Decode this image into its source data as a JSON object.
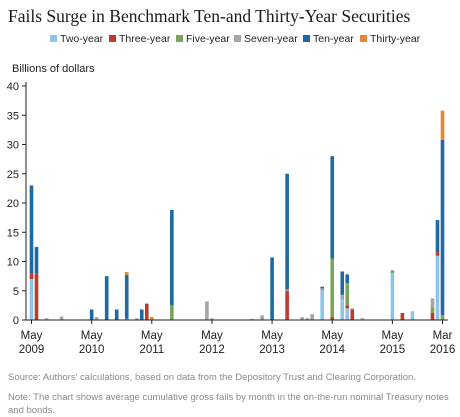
{
  "chart_data": {
    "type": "bar",
    "stacked": true,
    "title": "Fails Surge in Benchmark Ten-and Thirty-Year Securities",
    "ylabel": "Billions of dollars",
    "ylim": [
      0,
      40
    ],
    "yticks": [
      0,
      5,
      10,
      15,
      20,
      25,
      30,
      35,
      40
    ],
    "grid": false,
    "legend_position": "top",
    "xticks": [
      {
        "month": "May",
        "year": "2009"
      },
      {
        "month": "May",
        "year": "2010"
      },
      {
        "month": "May",
        "year": "2011"
      },
      {
        "month": "May",
        "year": "2012"
      },
      {
        "month": "May",
        "year": "2013"
      },
      {
        "month": "May",
        "year": "2014"
      },
      {
        "month": "May",
        "year": "2015"
      },
      {
        "month": "Mar",
        "year": "2016"
      }
    ],
    "categories": [
      "May 2009",
      "Jun 2009",
      "Jul 2009",
      "Aug 2009",
      "Sep 2009",
      "Oct 2009",
      "Nov 2009",
      "Dec 2009",
      "Jan 2010",
      "Feb 2010",
      "Mar 2010",
      "Apr 2010",
      "May 2010",
      "Jun 2010",
      "Jul 2010",
      "Aug 2010",
      "Sep 2010",
      "Oct 2010",
      "Nov 2010",
      "Dec 2010",
      "Jan 2011",
      "Feb 2011",
      "Mar 2011",
      "Apr 2011",
      "May 2011",
      "Jun 2011",
      "Jul 2011",
      "Aug 2011",
      "Sep 2011",
      "Oct 2011",
      "Nov 2011",
      "Dec 2011",
      "Jan 2012",
      "Feb 2012",
      "Mar 2012",
      "Apr 2012",
      "May 2012",
      "Jun 2012",
      "Jul 2012",
      "Aug 2012",
      "Sep 2012",
      "Oct 2012",
      "Nov 2012",
      "Dec 2012",
      "Jan 2013",
      "Feb 2013",
      "Mar 2013",
      "Apr 2013",
      "May 2013",
      "Jun 2013",
      "Jul 2013",
      "Aug 2013",
      "Sep 2013",
      "Oct 2013",
      "Nov 2013",
      "Dec 2013",
      "Jan 2014",
      "Feb 2014",
      "Mar 2014",
      "Apr 2014",
      "May 2014",
      "Jun 2014",
      "Jul 2014",
      "Aug 2014",
      "Sep 2014",
      "Oct 2014",
      "Nov 2014",
      "Dec 2014",
      "Jan 2015",
      "Feb 2015",
      "Mar 2015",
      "Apr 2015",
      "May 2015",
      "Jun 2015",
      "Jul 2015",
      "Aug 2015",
      "Sep 2015",
      "Oct 2015",
      "Nov 2015",
      "Dec 2015",
      "Jan 2016",
      "Feb 2016",
      "Mar 2016"
    ],
    "series": [
      {
        "name": "Two-year",
        "color": "#8dc4e8",
        "values": [
          7,
          0,
          0,
          0,
          0,
          0,
          0,
          0,
          0,
          0,
          0,
          0,
          0,
          0,
          0,
          0,
          0,
          0,
          0,
          0,
          0,
          0,
          0,
          0,
          0,
          0,
          0,
          0,
          0,
          0,
          0,
          0,
          0,
          0,
          0,
          0,
          0,
          0,
          0,
          0,
          0,
          0,
          0,
          0,
          0,
          0,
          0,
          0,
          0,
          0,
          0,
          0,
          0,
          0,
          0,
          0,
          0,
          0,
          5,
          0,
          0,
          0,
          3.5,
          2,
          0,
          0,
          0,
          0,
          0,
          0,
          0,
          0,
          8,
          0,
          0,
          0,
          1.5,
          0,
          0,
          0,
          0,
          11,
          0
        ]
      },
      {
        "name": "Three-year",
        "color": "#c0392b",
        "values": [
          1,
          8,
          0,
          0,
          0,
          0,
          0,
          0,
          0,
          0,
          0,
          0,
          0,
          0,
          0,
          0,
          0,
          0,
          0,
          0,
          0,
          0,
          0,
          2.8,
          0,
          0,
          0,
          0,
          0,
          0,
          0,
          0,
          0,
          0,
          0,
          0,
          0,
          0,
          0,
          0,
          0,
          0,
          0,
          0,
          0,
          0,
          0,
          0,
          0,
          0,
          0,
          5,
          0,
          0,
          0,
          0,
          0,
          0,
          0,
          0,
          0.5,
          0,
          0,
          0.5,
          1.8,
          0,
          0,
          0,
          0,
          0,
          0,
          0,
          0,
          0,
          1.2,
          0,
          0,
          0,
          0,
          0,
          1.2,
          0.6,
          0
        ]
      },
      {
        "name": "Five-year",
        "color": "#7aa35c",
        "values": [
          0,
          0,
          0,
          0,
          0,
          0,
          0,
          0,
          0,
          0,
          0,
          0,
          0,
          0,
          0,
          0,
          0,
          0,
          0,
          0,
          0,
          0,
          0,
          0,
          0,
          0,
          0,
          0,
          2.5,
          0,
          0,
          0,
          0,
          0,
          0,
          0,
          0,
          0,
          0,
          0,
          0,
          0,
          0,
          0,
          0,
          0,
          0,
          0,
          0,
          0,
          0,
          0,
          0,
          0,
          0,
          0,
          0,
          0,
          0,
          0,
          10,
          0,
          0,
          3.8,
          0,
          0,
          0,
          0,
          0,
          0,
          0,
          0,
          0.5,
          0,
          0,
          0,
          0,
          0,
          0,
          0,
          1,
          0,
          0.8
        ]
      },
      {
        "name": "Seven-year",
        "color": "#a5a5a5",
        "values": [
          0,
          0,
          0,
          0.3,
          0,
          0,
          0.6,
          0,
          0,
          0,
          0,
          0,
          0,
          0.5,
          0,
          0,
          0,
          0,
          0,
          0.2,
          0,
          0.3,
          0,
          0,
          0,
          0,
          0,
          0,
          0,
          0,
          0,
          0,
          0,
          0,
          0,
          3.2,
          0.3,
          0,
          0,
          0,
          0,
          0,
          0,
          0,
          0.2,
          0,
          0.8,
          0,
          0,
          0,
          0,
          0.2,
          0,
          0,
          0.5,
          0.3,
          1,
          0,
          0.4,
          0,
          0,
          0,
          0.8,
          0,
          0.2,
          0,
          0.3,
          0,
          0,
          0,
          0,
          0,
          0,
          0,
          0,
          0,
          0,
          0,
          0,
          0,
          1.5,
          0,
          0
        ]
      },
      {
        "name": "Ten-year",
        "color": "#1f6aa0",
        "values": [
          15,
          4.5,
          0,
          0,
          0,
          0,
          0,
          0,
          0,
          0,
          0,
          0,
          1.8,
          0,
          0,
          7.5,
          0,
          1.8,
          0,
          7.5,
          0,
          0,
          1.8,
          0,
          0,
          0,
          0,
          0,
          16.3,
          0,
          0,
          0,
          0,
          0,
          0,
          0,
          0,
          0,
          0,
          0,
          0,
          0,
          0,
          0,
          0,
          0,
          0,
          0,
          10.7,
          0,
          0,
          19.8,
          0,
          0,
          0,
          0,
          0,
          0,
          0.3,
          0,
          17.5,
          0,
          4,
          1.5,
          0,
          0,
          0,
          0,
          0,
          0,
          0,
          0,
          0,
          0,
          0,
          0,
          0,
          0,
          0,
          0,
          0,
          5.5,
          30
        ]
      },
      {
        "name": "Thirty-year",
        "color": "#e8872e",
        "values": [
          0,
          0,
          0,
          0,
          0,
          0,
          0,
          0,
          0,
          0,
          0,
          0,
          0,
          0,
          0,
          0,
          0,
          0,
          0,
          0.5,
          0,
          0,
          0,
          0,
          0.5,
          0,
          0,
          0,
          0,
          0,
          0,
          0,
          0,
          0,
          0,
          0,
          0,
          0,
          0,
          0,
          0,
          0,
          0,
          0,
          0,
          0,
          0,
          0,
          0,
          0,
          0,
          0,
          0,
          0,
          0,
          0,
          0,
          0,
          0,
          0,
          0,
          0,
          0,
          0,
          0,
          0,
          0,
          0,
          0,
          0,
          0,
          0,
          0,
          0,
          0,
          0,
          0,
          0,
          0,
          0,
          0,
          0,
          5
        ]
      }
    ]
  },
  "source": "Source: Authors' calculations, based on data from the Depository Trust and Clearing Corporation.",
  "note": "Note: The chart shows average cumulative gross fails by month in the on-the-run nominal Treasury notes and bonds."
}
